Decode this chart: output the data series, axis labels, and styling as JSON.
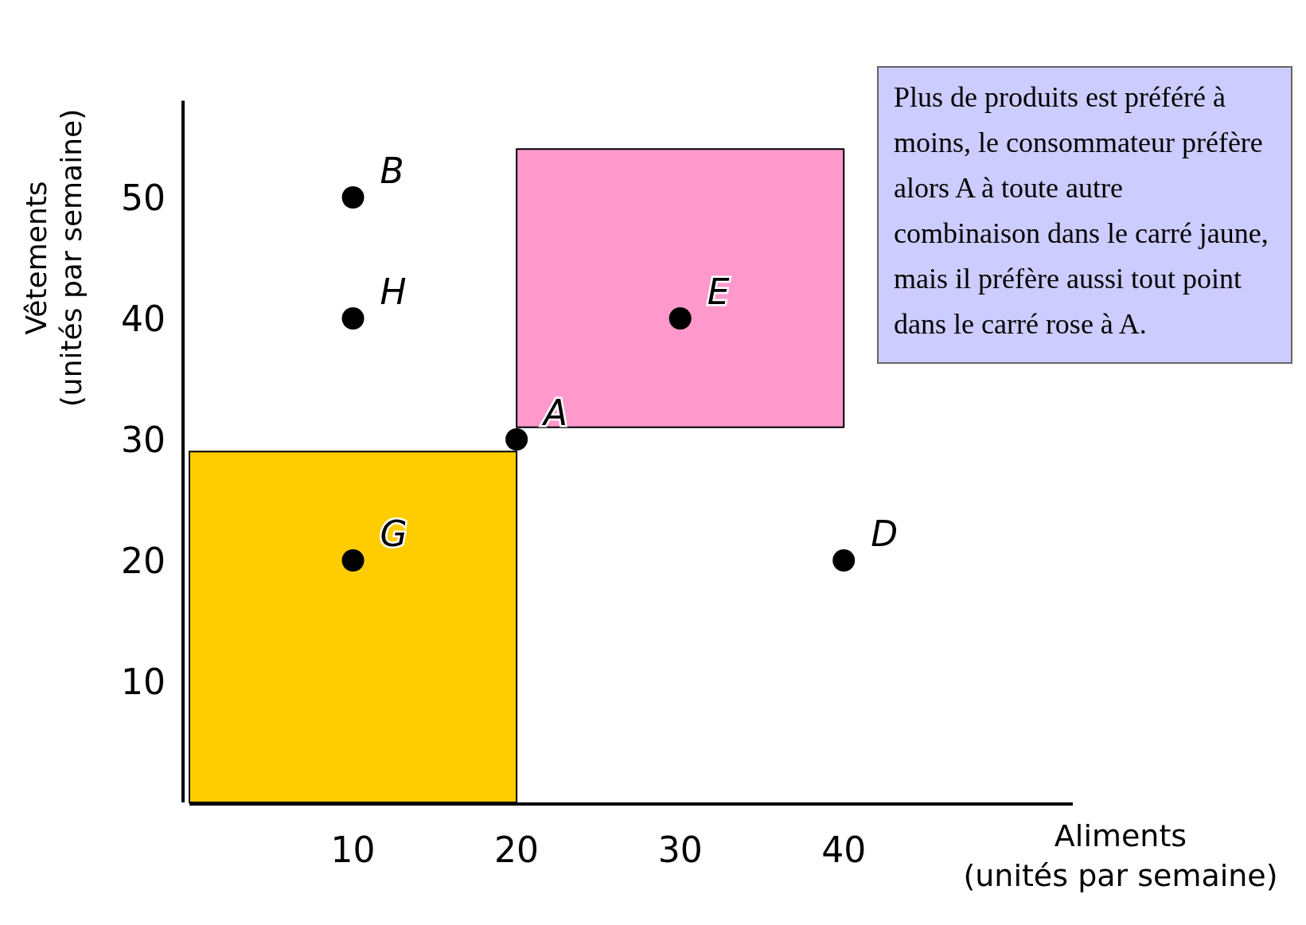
{
  "chart_data": {
    "type": "scatter",
    "xlabel": "Aliments\n(unités par semaine)",
    "ylabel": "Vêtements\n(unités par semaine)",
    "xlim": [
      0,
      54
    ],
    "ylim": [
      0,
      58
    ],
    "xticks": [
      10,
      20,
      30,
      40
    ],
    "yticks": [
      10,
      20,
      30,
      40,
      50
    ],
    "grid": false,
    "series": [
      {
        "type": "area",
        "color": "#ffcc00",
        "x": [
          0,
          20
        ],
        "values": [
          29,
          29
        ]
      },
      {
        "type": "area",
        "color": "#ff99cc",
        "x": [
          20,
          20,
          40,
          40
        ],
        "values": [
          31,
          54,
          54,
          31
        ]
      },
      {
        "marker": "circle",
        "color": "#000000",
        "x": [
          10,
          10,
          20,
          30,
          40,
          10
        ],
        "values": [
          50,
          40,
          30,
          40,
          20,
          20
        ]
      }
    ],
    "annotations": [
      {
        "text": "B",
        "x": 10,
        "y": 50
      },
      {
        "text": "H",
        "x": 10,
        "y": 40
      },
      {
        "text": "A",
        "x": 20,
        "y": 30
      },
      {
        "text": "E",
        "x": 30,
        "y": 40
      },
      {
        "text": "D",
        "x": 40,
        "y": 20
      },
      {
        "text": "G",
        "x": 10,
        "y": 20
      },
      "Plus de produits est préféré à moins, le consommateur préfère alors A à toute autre combinaison dans le carré jaune, mais il préfère aussi tout point dans le carré rose à A."
    ]
  }
}
